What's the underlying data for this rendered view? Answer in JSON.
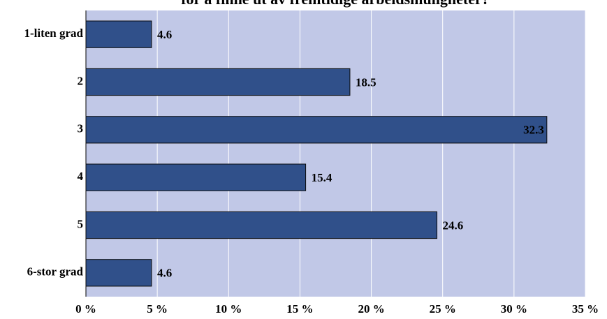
{
  "chart_data": {
    "type": "bar",
    "orientation": "horizontal",
    "title": "for å finne ut av fremtidige arbeidsmuligheter?",
    "categories": [
      "1-liten grad",
      "2",
      "3",
      "4",
      "5",
      "6-stor grad"
    ],
    "values": [
      4.6,
      18.5,
      32.3,
      15.4,
      24.6,
      4.6
    ],
    "color": "#30508a",
    "xlim": [
      0,
      35
    ],
    "xticks": [
      {
        "value": 0,
        "label": "0 %"
      },
      {
        "value": 5,
        "label": "5 %"
      },
      {
        "value": 10,
        "label": "10 %"
      },
      {
        "value": 15,
        "label": "15 %"
      },
      {
        "value": 20,
        "label": "20 %"
      },
      {
        "value": 25,
        "label": "25 %"
      },
      {
        "value": 30,
        "label": "30 %"
      },
      {
        "value": 35,
        "label": "35 %"
      }
    ],
    "grid": true
  }
}
